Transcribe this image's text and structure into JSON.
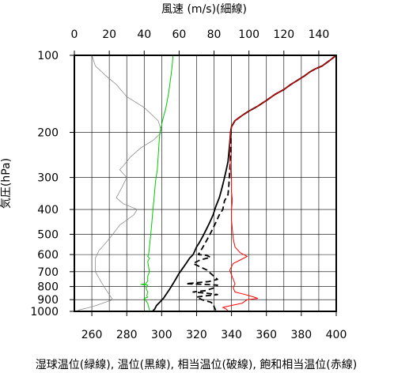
{
  "chart_data": {
    "type": "line",
    "title": "",
    "top_axis": {
      "label": "風速 (m/s)(細線)",
      "range": [
        0,
        150
      ],
      "ticks": [
        0,
        20,
        40,
        60,
        80,
        100,
        120,
        140
      ],
      "tick_labels": [
        "0",
        "20",
        "40",
        "60",
        "80",
        "100",
        "120",
        "140"
      ]
    },
    "bottom_axis": {
      "label": "湿球温位(緑線), 温位(黒線), 相当温位(破線), 飽和相当温位(赤線)",
      "range": [
        250,
        400
      ],
      "ticks": [
        260,
        280,
        300,
        320,
        340,
        360,
        380,
        400
      ],
      "tick_labels": [
        "260",
        "280",
        "300",
        "320",
        "340",
        "360",
        "380",
        "400"
      ],
      "grid_ticks": [
        250,
        260,
        270,
        280,
        290,
        300,
        310,
        320,
        330,
        340,
        350,
        360,
        370,
        380,
        390,
        400
      ]
    },
    "y_axis": {
      "label": "気圧(hPa)",
      "scale": "log",
      "range": [
        1000,
        100
      ],
      "ticks": [
        100,
        200,
        300,
        400,
        500,
        600,
        700,
        800,
        900,
        1000
      ],
      "tick_labels": [
        "100",
        "200",
        "300",
        "400",
        "500",
        "600",
        "700",
        "800",
        "900",
        "1000"
      ]
    },
    "grid": true,
    "series": [
      {
        "key": "wind_speed",
        "axis": "top",
        "color": "#808080",
        "style": "thin",
        "points": [
          [
            10,
            100
          ],
          [
            12,
            110
          ],
          [
            18,
            120
          ],
          [
            24,
            130
          ],
          [
            30,
            145
          ],
          [
            40,
            160
          ],
          [
            48,
            180
          ],
          [
            50,
            200
          ],
          [
            45,
            215
          ],
          [
            38,
            230
          ],
          [
            32,
            250
          ],
          [
            30,
            260
          ],
          [
            28,
            270
          ],
          [
            26,
            280
          ],
          [
            28,
            290
          ],
          [
            30,
            300
          ],
          [
            28,
            320
          ],
          [
            26,
            340
          ],
          [
            24,
            360
          ],
          [
            28,
            380
          ],
          [
            36,
            400
          ],
          [
            34,
            420
          ],
          [
            30,
            440
          ],
          [
            26,
            460
          ],
          [
            22,
            500
          ],
          [
            18,
            540
          ],
          [
            14,
            580
          ],
          [
            12,
            620
          ],
          [
            12,
            660
          ],
          [
            12,
            700
          ],
          [
            14,
            740
          ],
          [
            16,
            780
          ],
          [
            18,
            820
          ],
          [
            20,
            860
          ],
          [
            22,
            900
          ],
          [
            16,
            930
          ],
          [
            10,
            960
          ],
          [
            2,
            990
          ]
        ]
      },
      {
        "key": "wet_bulb_potential_temperature",
        "axis": "bottom",
        "color": "#00cc00",
        "style": "solid",
        "points": [
          [
            306.5,
            100
          ],
          [
            306,
            110
          ],
          [
            305,
            125
          ],
          [
            304,
            140
          ],
          [
            302.5,
            160
          ],
          [
            300.5,
            180
          ],
          [
            299,
            200
          ],
          [
            298.5,
            220
          ],
          [
            298,
            250
          ],
          [
            297.5,
            280
          ],
          [
            296.5,
            310
          ],
          [
            296,
            340
          ],
          [
            295.5,
            370
          ],
          [
            295,
            400
          ],
          [
            294.5,
            440
          ],
          [
            294,
            480
          ],
          [
            293.5,
            520
          ],
          [
            293,
            560
          ],
          [
            292.5,
            600
          ],
          [
            292,
            610
          ],
          [
            293,
            620
          ],
          [
            292,
            640
          ],
          [
            292.5,
            670
          ],
          [
            293,
            700
          ],
          [
            292,
            730
          ],
          [
            292,
            760
          ],
          [
            291,
            780
          ],
          [
            288,
            785
          ],
          [
            292,
            790
          ],
          [
            291,
            810
          ],
          [
            292,
            840
          ],
          [
            291.5,
            870
          ],
          [
            292,
            880
          ],
          [
            290,
            890
          ],
          [
            291,
            910
          ],
          [
            292,
            930
          ],
          [
            292.5,
            960
          ],
          [
            293,
            990
          ]
        ]
      },
      {
        "key": "potential_temperature",
        "axis": "bottom",
        "color": "#000000",
        "style": "solid",
        "points": [
          [
            400,
            100
          ],
          [
            396,
            105
          ],
          [
            392,
            110
          ],
          [
            388,
            113
          ],
          [
            385,
            116
          ],
          [
            382,
            120
          ],
          [
            378,
            125
          ],
          [
            374,
            130
          ],
          [
            370,
            136
          ],
          [
            365,
            142
          ],
          [
            360,
            150
          ],
          [
            355,
            158
          ],
          [
            350,
            165
          ],
          [
            346,
            172
          ],
          [
            342,
            180
          ],
          [
            340,
            190
          ],
          [
            339.5,
            200
          ],
          [
            339,
            220
          ],
          [
            338.5,
            240
          ],
          [
            338,
            260
          ],
          [
            337,
            280
          ],
          [
            336,
            300
          ],
          [
            335,
            320
          ],
          [
            334,
            340
          ],
          [
            333,
            360
          ],
          [
            331,
            390
          ],
          [
            329.5,
            420
          ],
          [
            327.5,
            450
          ],
          [
            325.5,
            480
          ],
          [
            323.5,
            510
          ],
          [
            321.5,
            540
          ],
          [
            320,
            560
          ],
          [
            319,
            580
          ],
          [
            318,
            600
          ],
          [
            316,
            620
          ],
          [
            314,
            650
          ],
          [
            312,
            680
          ],
          [
            310,
            710
          ],
          [
            308.5,
            740
          ],
          [
            307,
            770
          ],
          [
            305.5,
            800
          ],
          [
            304,
            830
          ],
          [
            302.5,
            860
          ],
          [
            301,
            890
          ],
          [
            299,
            920
          ],
          [
            297,
            950
          ],
          [
            296,
            980
          ],
          [
            295,
            995
          ]
        ]
      },
      {
        "key": "equivalent_potential_temperature",
        "axis": "bottom",
        "color": "#000000",
        "style": "dashed",
        "points": [
          [
            400,
            100
          ],
          [
            396,
            105
          ],
          [
            392,
            110
          ],
          [
            388,
            113
          ],
          [
            385,
            116
          ],
          [
            382,
            120
          ],
          [
            378,
            125
          ],
          [
            374,
            130
          ],
          [
            370,
            136
          ],
          [
            365,
            142
          ],
          [
            360,
            150
          ],
          [
            355,
            158
          ],
          [
            350,
            165
          ],
          [
            346,
            172
          ],
          [
            342,
            180
          ],
          [
            340,
            190
          ],
          [
            339.5,
            200
          ],
          [
            339.5,
            240
          ],
          [
            339,
            280
          ],
          [
            338.5,
            320
          ],
          [
            338,
            350
          ],
          [
            336,
            370
          ],
          [
            335,
            400
          ],
          [
            333,
            420
          ],
          [
            331,
            450
          ],
          [
            329,
            480
          ],
          [
            327,
            510
          ],
          [
            325,
            540
          ],
          [
            323,
            570
          ],
          [
            321,
            600
          ],
          [
            326,
            605
          ],
          [
            328,
            615
          ],
          [
            322,
            630
          ],
          [
            318,
            650
          ],
          [
            322,
            670
          ],
          [
            326,
            690
          ],
          [
            328,
            710
          ],
          [
            330,
            730
          ],
          [
            332,
            750
          ],
          [
            327,
            765
          ],
          [
            314,
            780
          ],
          [
            325,
            785
          ],
          [
            332,
            790
          ],
          [
            330,
            810
          ],
          [
            325,
            830
          ],
          [
            318,
            840
          ],
          [
            326,
            850
          ],
          [
            332,
            860
          ],
          [
            325,
            870
          ],
          [
            320,
            880
          ],
          [
            323,
            900
          ],
          [
            328,
            920
          ],
          [
            330,
            940
          ],
          [
            330,
            960
          ],
          [
            331,
            990
          ]
        ]
      },
      {
        "key": "saturated_equivalent_potential_temperature",
        "axis": "bottom",
        "color": "#ff0000",
        "style": "solid",
        "points": [
          [
            400,
            100
          ],
          [
            396,
            105
          ],
          [
            392,
            110
          ],
          [
            388,
            113
          ],
          [
            385,
            116
          ],
          [
            382,
            120
          ],
          [
            378,
            125
          ],
          [
            374,
            130
          ],
          [
            370,
            136
          ],
          [
            365,
            142
          ],
          [
            360,
            150
          ],
          [
            355,
            158
          ],
          [
            350,
            165
          ],
          [
            346,
            172
          ],
          [
            342,
            180
          ],
          [
            340,
            190
          ],
          [
            339.5,
            200
          ],
          [
            339,
            220
          ],
          [
            339,
            250
          ],
          [
            339.5,
            280
          ],
          [
            340,
            310
          ],
          [
            340,
            340
          ],
          [
            340.5,
            370
          ],
          [
            340,
            400
          ],
          [
            340,
            440
          ],
          [
            340.5,
            480
          ],
          [
            341,
            520
          ],
          [
            342,
            560
          ],
          [
            345,
            590
          ],
          [
            349,
            610
          ],
          [
            345,
            630
          ],
          [
            341,
            650
          ],
          [
            339,
            690
          ],
          [
            340,
            720
          ],
          [
            341,
            750
          ],
          [
            342,
            780
          ],
          [
            341,
            810
          ],
          [
            342,
            840
          ],
          [
            348,
            860
          ],
          [
            353,
            880
          ],
          [
            355,
            890
          ],
          [
            349,
            900
          ],
          [
            346,
            930
          ],
          [
            338,
            955
          ],
          [
            335,
            965
          ],
          [
            337,
            980
          ],
          [
            338,
            995
          ]
        ]
      }
    ]
  }
}
